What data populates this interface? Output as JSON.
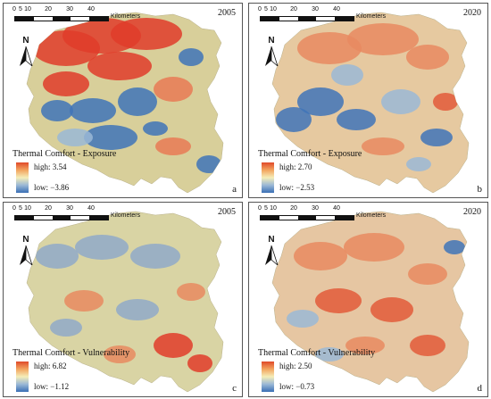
{
  "scale": {
    "ticks": [
      "0",
      "5",
      "10",
      "20",
      "30",
      "40"
    ],
    "unit": "Kilometers"
  },
  "north_label": "N",
  "legend_colors": {
    "high": "#e04a2a",
    "mid": "#f5edb8",
    "low": "#3a6fb5"
  },
  "panels": [
    {
      "key": "a",
      "letter": "a",
      "year": "2005",
      "title": "Thermal Comfort - Exposure",
      "high": "high: 3.54",
      "low": "low: −3.86"
    },
    {
      "key": "b",
      "letter": "b",
      "year": "2020",
      "title": "Thermal Comfort - Exposure",
      "high": "high: 2.70",
      "low": "low: −2.53"
    },
    {
      "key": "c",
      "letter": "c",
      "year": "2005",
      "title": "Thermal Comfort - Vulnerability",
      "high": "high: 6.82",
      "low": "low: −1.12"
    },
    {
      "key": "d",
      "letter": "d",
      "year": "2020",
      "title": "Thermal Comfort - Vulnerability",
      "high": "high: 2.50",
      "low": "low: −0.73"
    }
  ]
}
